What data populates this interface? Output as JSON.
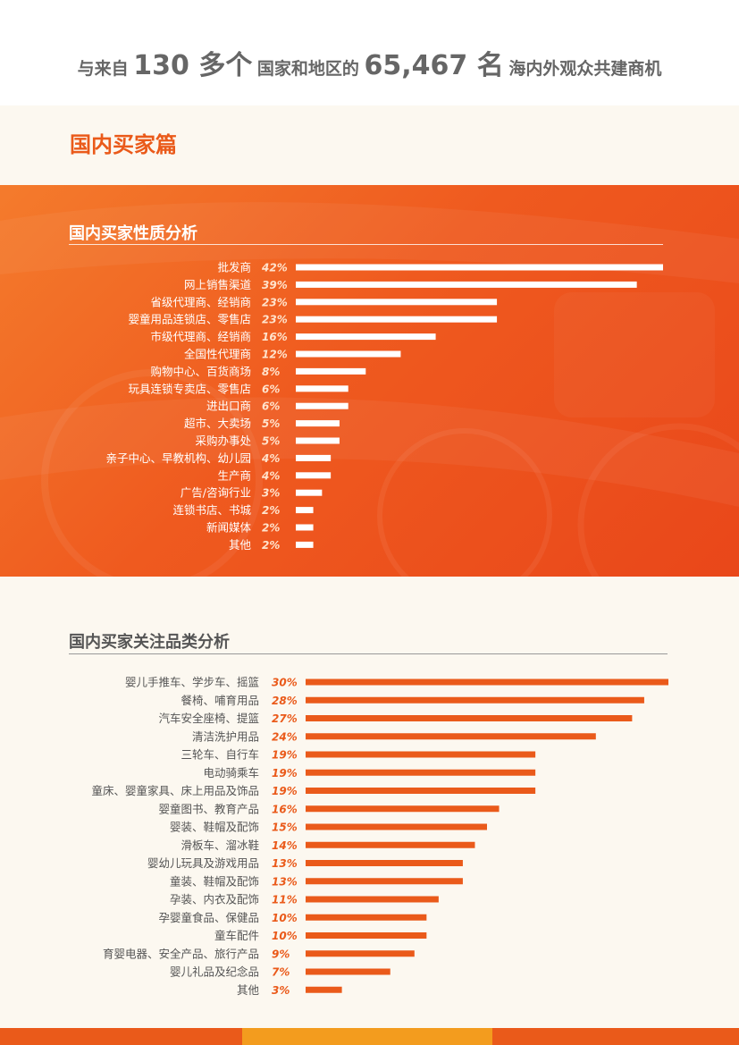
{
  "headline": {
    "p1": "与来自",
    "n1": "130 多个",
    "p2": "国家和地区的",
    "n2": "65,467 名",
    "p3": "海内外观众共建商机"
  },
  "section_title": "国内买家篇",
  "colors": {
    "accent": "#ea5a1a",
    "panel": "#ef5a1f",
    "bar_light": "#ffffff",
    "bar_dark": "#ea5a1a",
    "label_dark": "#555555",
    "value_light": "#ffe3cc"
  },
  "chart_data": [
    {
      "type": "bar",
      "orientation": "horizontal",
      "title": "国内买家性质分析",
      "unit": "%",
      "categories": [
        "批发商",
        "网上销售渠道",
        "省级代理商、经销商",
        "婴童用品连锁店、零售店",
        "市级代理商、经销商",
        "全国性代理商",
        "购物中心、百货商场",
        "玩具连锁专卖店、零售店",
        "进出口商",
        "超市、大卖场",
        "采购办事处",
        "亲子中心、早教机构、幼儿园",
        "生产商",
        "广告/咨询行业",
        "连锁书店、书城",
        "新闻媒体",
        "其他"
      ],
      "values": [
        42,
        39,
        23,
        23,
        16,
        12,
        8,
        6,
        6,
        5,
        5,
        4,
        4,
        3,
        2,
        2,
        2
      ],
      "value_labels": [
        "42%",
        "39%",
        "23%",
        "23%",
        "16%",
        "12%",
        "8%",
        "6%",
        "6%",
        "5%",
        "5%",
        "4%",
        "4%",
        "3%",
        "2%",
        "2%",
        "2%"
      ],
      "xlim": [
        0,
        42
      ],
      "grid": false,
      "legend": "none"
    },
    {
      "type": "bar",
      "orientation": "horizontal",
      "title": "国内买家关注品类分析",
      "unit": "%",
      "categories": [
        "婴儿手推车、学步车、摇篮",
        "餐椅、哺育用品",
        "汽车安全座椅、提篮",
        "清洁洗护用品",
        "三轮车、自行车",
        "电动骑乘车",
        "童床、婴童家具、床上用品及饰品",
        "婴童图书、教育产品",
        "婴装、鞋帽及配饰",
        "滑板车、溜冰鞋",
        "婴幼儿玩具及游戏用品",
        "童装、鞋帽及配饰",
        "孕装、内衣及配饰",
        "孕婴童食品、保健品",
        "童车配件",
        "育婴电器、安全产品、旅行产品",
        "婴儿礼品及纪念品",
        "其他"
      ],
      "values": [
        30,
        28,
        27,
        24,
        19,
        19,
        19,
        16,
        15,
        14,
        13,
        13,
        11,
        10,
        10,
        9,
        7,
        3
      ],
      "value_labels": [
        "30%",
        "28%",
        "27%",
        "24%",
        "19%",
        "19%",
        "19%",
        "16%",
        "15%",
        "14%",
        "13%",
        "13%",
        "11%",
        "10%",
        "10%",
        "9%",
        "7%",
        "3%"
      ],
      "xlim": [
        0,
        30
      ],
      "grid": false,
      "legend": "none"
    }
  ]
}
